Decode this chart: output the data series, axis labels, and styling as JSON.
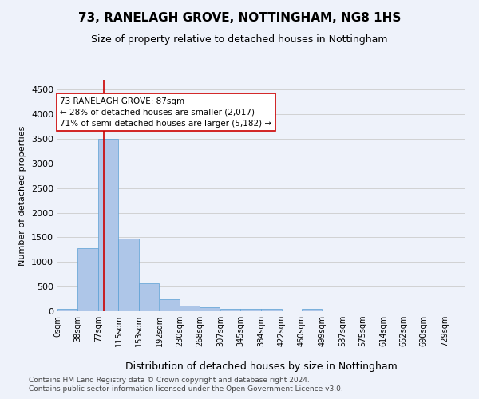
{
  "title": "73, RANELAGH GROVE, NOTTINGHAM, NG8 1HS",
  "subtitle": "Size of property relative to detached houses in Nottingham",
  "xlabel": "Distribution of detached houses by size in Nottingham",
  "ylabel": "Number of detached properties",
  "footer_line1": "Contains HM Land Registry data © Crown copyright and database right 2024.",
  "footer_line2": "Contains public sector information licensed under the Open Government Licence v3.0.",
  "bin_edges": [
    0,
    38,
    77,
    115,
    153,
    192,
    230,
    268,
    307,
    345,
    384,
    422,
    460,
    499,
    537,
    575,
    614,
    652,
    690,
    729,
    767
  ],
  "bar_values": [
    50,
    1280,
    3500,
    1480,
    570,
    240,
    110,
    80,
    50,
    50,
    50,
    0,
    50,
    0,
    0,
    0,
    0,
    0,
    0,
    0
  ],
  "bar_color": "#aec6e8",
  "bar_edgecolor": "#5a9fd4",
  "property_size": 87,
  "red_line_color": "#cc0000",
  "annotation_text": "73 RANELAGH GROVE: 87sqm\n← 28% of detached houses are smaller (2,017)\n71% of semi-detached houses are larger (5,182) →",
  "annotation_box_edgecolor": "#cc0000",
  "annotation_box_facecolor": "#ffffff",
  "ylim": [
    0,
    4700
  ],
  "yticks": [
    0,
    500,
    1000,
    1500,
    2000,
    2500,
    3000,
    3500,
    4000,
    4500
  ],
  "grid_color": "#cccccc",
  "background_color": "#eef2fa",
  "axes_background": "#eef2fa",
  "title_fontsize": 11,
  "subtitle_fontsize": 9,
  "tick_label_fontsize": 7,
  "ylabel_fontsize": 8,
  "xlabel_fontsize": 9,
  "footer_fontsize": 6.5
}
